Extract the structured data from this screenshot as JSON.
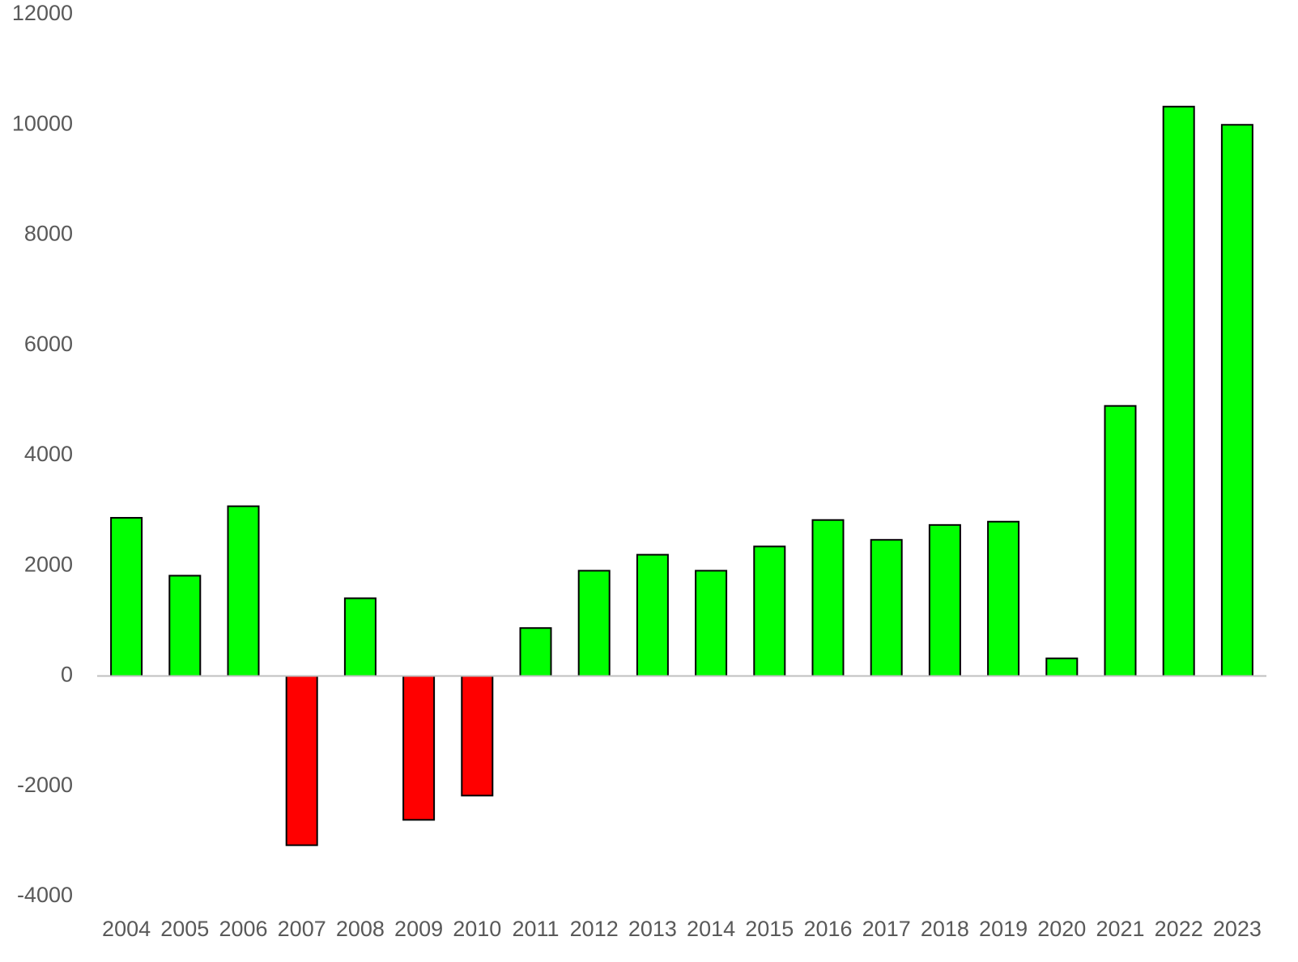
{
  "chart_data": {
    "type": "bar",
    "categories": [
      "2004",
      "2005",
      "2006",
      "2007",
      "2008",
      "2009",
      "2010",
      "2011",
      "2012",
      "2013",
      "2014",
      "2015",
      "2016",
      "2017",
      "2018",
      "2019",
      "2020",
      "2021",
      "2022",
      "2023"
    ],
    "values": [
      2870,
      1820,
      3080,
      -3070,
      1410,
      -2610,
      -2170,
      870,
      1910,
      2200,
      1910,
      2350,
      2830,
      2470,
      2740,
      2800,
      320,
      4900,
      10330,
      10000
    ],
    "positive_color": "#00ff00",
    "negative_color": "#ff0000",
    "ylim": [
      -4000,
      12000
    ],
    "yticks": [
      -4000,
      -2000,
      0,
      2000,
      4000,
      6000,
      8000,
      10000,
      12000
    ],
    "grid": false
  }
}
